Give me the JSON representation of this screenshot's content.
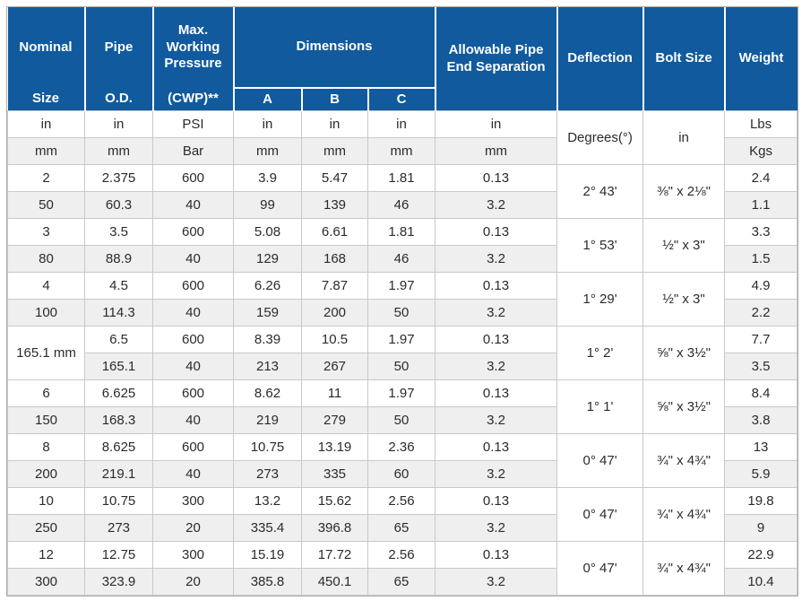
{
  "table": {
    "header": {
      "nominal": {
        "line1": "Nominal",
        "line2": "Size"
      },
      "pipe": {
        "line1": "Pipe",
        "line2": "O.D."
      },
      "pressure": {
        "line1": "Max. Working Pressure",
        "line2": "(CWP)**"
      },
      "dimensions": "Dimensions",
      "dim_a": "A",
      "dim_b": "B",
      "dim_c": "C",
      "separation": "Allowable Pipe End Separation",
      "deflection": "Deflection",
      "bolt_size": "Bolt Size",
      "weight": "Weight"
    },
    "units": {
      "in_row": [
        "in",
        "in",
        "PSI",
        "in",
        "in",
        "in",
        "in"
      ],
      "mm_row": [
        "mm",
        "mm",
        "Bar",
        "mm",
        "mm",
        "mm",
        "mm"
      ],
      "deflection": "Degrees(°)",
      "bolt": "in",
      "weight_lbs": "Lbs",
      "weight_kgs": "Kgs"
    },
    "groups": [
      {
        "nominal": [
          "2",
          "50"
        ],
        "od": [
          "2.375",
          "60.3"
        ],
        "cwp": [
          "600",
          "40"
        ],
        "a": [
          "3.9",
          "99"
        ],
        "b": [
          "5.47",
          "139"
        ],
        "c": [
          "1.81",
          "46"
        ],
        "sep": [
          "0.13",
          "3.2"
        ],
        "deflection": "2° 43'",
        "bolt": "⅜\" x 2⅛\"",
        "weight": [
          "2.4",
          "1.1"
        ]
      },
      {
        "nominal": [
          "3",
          "80"
        ],
        "od": [
          "3.5",
          "88.9"
        ],
        "cwp": [
          "600",
          "40"
        ],
        "a": [
          "5.08",
          "129"
        ],
        "b": [
          "6.61",
          "168"
        ],
        "c": [
          "1.81",
          "46"
        ],
        "sep": [
          "0.13",
          "3.2"
        ],
        "deflection": "1° 53'",
        "bolt": "½\" x 3\"",
        "weight": [
          "3.3",
          "1.5"
        ]
      },
      {
        "nominal": [
          "4",
          "100"
        ],
        "od": [
          "4.5",
          "114.3"
        ],
        "cwp": [
          "600",
          "40"
        ],
        "a": [
          "6.26",
          "159"
        ],
        "b": [
          "7.87",
          "200"
        ],
        "c": [
          "1.97",
          "50"
        ],
        "sep": [
          "0.13",
          "3.2"
        ],
        "deflection": "1° 29'",
        "bolt": "½\" x 3\"",
        "weight": [
          "4.9",
          "2.2"
        ]
      },
      {
        "nominal": "165.1 mm",
        "od": [
          "6.5",
          "165.1"
        ],
        "cwp": [
          "600",
          "40"
        ],
        "a": [
          "8.39",
          "213"
        ],
        "b": [
          "10.5",
          "267"
        ],
        "c": [
          "1.97",
          "50"
        ],
        "sep": [
          "0.13",
          "3.2"
        ],
        "deflection": "1° 2'",
        "bolt": "⅝\" x 3½\"",
        "weight": [
          "7.7",
          "3.5"
        ]
      },
      {
        "nominal": [
          "6",
          "150"
        ],
        "od": [
          "6.625",
          "168.3"
        ],
        "cwp": [
          "600",
          "40"
        ],
        "a": [
          "8.62",
          "219"
        ],
        "b": [
          "11",
          "279"
        ],
        "c": [
          "1.97",
          "50"
        ],
        "sep": [
          "0.13",
          "3.2"
        ],
        "deflection": "1° 1'",
        "bolt": "⅝\" x 3½\"",
        "weight": [
          "8.4",
          "3.8"
        ]
      },
      {
        "nominal": [
          "8",
          "200"
        ],
        "od": [
          "8.625",
          "219.1"
        ],
        "cwp": [
          "600",
          "40"
        ],
        "a": [
          "10.75",
          "273"
        ],
        "b": [
          "13.19",
          "335"
        ],
        "c": [
          "2.36",
          "60"
        ],
        "sep": [
          "0.13",
          "3.2"
        ],
        "deflection": "0° 47'",
        "bolt": "¾\" x 4¾\"",
        "weight": [
          "13",
          "5.9"
        ]
      },
      {
        "nominal": [
          "10",
          "250"
        ],
        "od": [
          "10.75",
          "273"
        ],
        "cwp": [
          "300",
          "20"
        ],
        "a": [
          "13.2",
          "335.4"
        ],
        "b": [
          "15.62",
          "396.8"
        ],
        "c": [
          "2.56",
          "65"
        ],
        "sep": [
          "0.13",
          "3.2"
        ],
        "deflection": "0° 47'",
        "bolt": "¾\" x 4¾\"",
        "weight": [
          "19.8",
          "9"
        ]
      },
      {
        "nominal": [
          "12",
          "300"
        ],
        "od": [
          "12.75",
          "323.9"
        ],
        "cwp": [
          "300",
          "20"
        ],
        "a": [
          "15.19",
          "385.8"
        ],
        "b": [
          "17.72",
          "450.1"
        ],
        "c": [
          "2.56",
          "65"
        ],
        "sep": [
          "0.13",
          "3.2"
        ],
        "deflection": "0° 47'",
        "bolt": "¾\" x 4¾\"",
        "weight": [
          "22.9",
          "10.4"
        ]
      }
    ]
  },
  "colors": {
    "header_bg": "#115a9e",
    "header_text": "#ffffff",
    "stripe_bg": "#efefef",
    "row_bg": "#ffffff",
    "grid_border": "#c9c9c9",
    "outer_border": "#adadad",
    "body_text": "#2b2b2b"
  }
}
